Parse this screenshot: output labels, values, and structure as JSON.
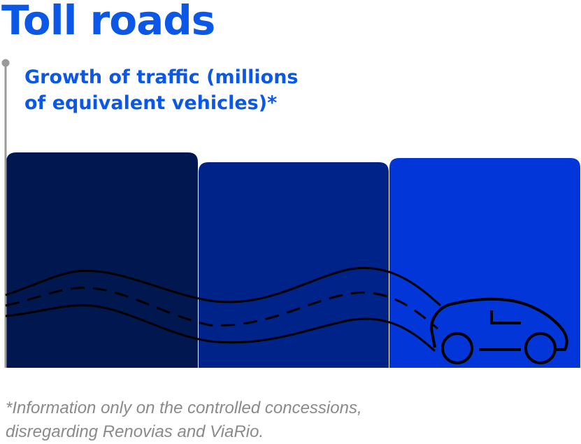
{
  "header": {
    "title": "Toll roads"
  },
  "chart_title": {
    "line1": "Growth of traffic (millions",
    "line2": "of equivalent vehicles)*"
  },
  "footnote": {
    "line1": "*Information only on the controlled concessions,",
    "line2": "disregarding Renovias and ViaRio."
  },
  "chart_data": {
    "type": "bar",
    "categories": [],
    "values": [],
    "bar_colors": [
      "#00184f",
      "#00238a",
      "#0336d8"
    ],
    "grid": false,
    "decoration": "road-and-car-icon"
  },
  "colors": {
    "title": "#0b57e8",
    "axis": "#9a9a9a",
    "footnote": "#8a8a8a",
    "road": "#000000"
  }
}
